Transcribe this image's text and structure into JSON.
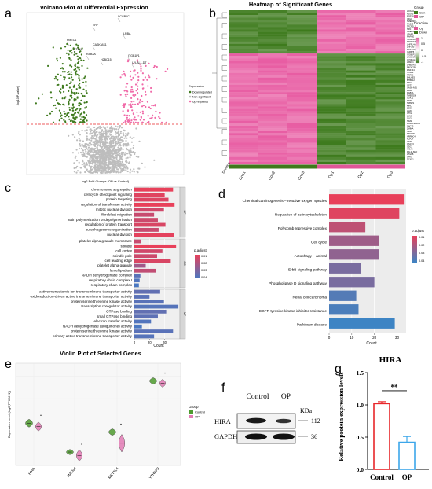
{
  "panel_letters": [
    "a",
    "b",
    "c",
    "d",
    "e",
    "f",
    "g"
  ],
  "chart_data": [
    {
      "panel": "a",
      "type": "scatter",
      "title": "volcano Plot of Differential Expression",
      "xlabel": "log2 Fold Change (OP vs Control)",
      "ylabel": "-log10(P-value)",
      "legend": {
        "title": "Expression",
        "entries": [
          "Down-regulated",
          "Non-significant",
          "Up-regulated"
        ],
        "position": "right"
      },
      "colors": {
        "down": "#3f7a1e",
        "ns": "#bdbdbd",
        "up": "#f06aa8",
        "threshold": "#e8262a"
      },
      "gene_labels": [
        "SCGB1C1",
        "ERF",
        "LRBA",
        "PMEC1",
        "CASK-AS1",
        "STK16",
        "RAB3A",
        "H2BC15",
        "ITGB1P1",
        "LYLAL1-DT"
      ]
    },
    {
      "panel": "b",
      "type": "heatmap",
      "title": "Heatmap of Significant Genes",
      "columns": [
        "Con1",
        "Con2",
        "Con3",
        "Op1",
        "Op2",
        "Op3"
      ],
      "column_bar_label": "Direction",
      "legend": {
        "group_title": "Group",
        "group_entries": [
          "Con",
          "OP"
        ],
        "direction_title": "Direction",
        "direction_entries": [
          "Up",
          "Down"
        ],
        "scale_ticks": [
          "1",
          "0.5",
          "0",
          "-0.5",
          "-1"
        ]
      },
      "colors": {
        "high": "#e85da3",
        "low": "#3d7a1c",
        "mid": "#ffffff",
        "op": "#e05698",
        "con": "#3e7a1b"
      },
      "up_blocks": 18,
      "down_blocks": 46,
      "row_labels": [
        "HOXA9",
        "FZGA5",
        "RSPY8",
        "CDH1",
        "TMEM40",
        "RAB13",
        "TFCP2L1",
        "SFN",
        "GREB1",
        "LPAR3",
        "RAPGE",
        "SCGB1C1",
        "SERPINA2",
        "LHFPL4-AS1",
        "ZNF385",
        "RAP-MA2",
        "IGFBP5",
        "ITGB1P1",
        "LINC01705",
        "CYDEAL1",
        "LAMC1",
        "LHBL-AS1",
        "PIK3C2B",
        "RNF144",
        "SYBP4",
        "PRR36",
        "BHLHE5",
        "BTBD12",
        "NFIC",
        "CST2",
        "CASK-AS1",
        "LRBA",
        "RAB3A",
        "TMEM208",
        "SOX11",
        "DDTL",
        "TRIM71",
        "KIRL",
        "ZCS3",
        "HHAT",
        "CTNA",
        "JUN8",
        "GLI3",
        "SDAB",
        "MAHB-SHFC3",
        "SNC13",
        "ZMIMA",
        "NRK2",
        "STK16P",
        "ARRDC4",
        "FLVCR",
        "CDK5",
        "GSCT3",
        "CDC3",
        "ITGA5",
        "PALM-SMF",
        "ATG9B",
        "SPN1",
        "DCNT1"
      ]
    },
    {
      "panel": "c",
      "type": "bar",
      "xlabel": "Count",
      "xlim": [
        0,
        60
      ],
      "xticks": [
        0,
        20,
        40
      ],
      "legend": {
        "title": "p.adjust",
        "ticks": [
          "0.01",
          "0.02",
          "0.03",
          "0.04"
        ]
      },
      "colors": {
        "low": "#e8405a",
        "high": "#4a78c2"
      },
      "groups": [
        {
          "name": "BP",
          "categories": [
            "chromosome segregation",
            "cell cycle checkpoint signaling",
            "protein targeting",
            "regulation of transferase activity",
            "mitotic nuclear division",
            "fibroblast migration",
            "actin polymerization or depolymerization",
            "regulation of protein transport",
            "autophagosome organization",
            "nuclear division"
          ],
          "values": [
            51,
            40,
            45,
            53,
            39,
            26,
            31,
            41,
            32,
            52
          ],
          "p_adjust": [
            0.004,
            0.006,
            0.007,
            0.004,
            0.01,
            0.012,
            0.011,
            0.008,
            0.012,
            0.005
          ]
        },
        {
          "name": "CC",
          "categories": [
            "platelet alpha granule membrane",
            "spindle",
            "cell cortex",
            "spindle pole",
            "cell leading edge",
            "platelet alpha granule",
            "lamellipodium",
            "NADH dehydrogenase complex",
            "respiratory chain complex I",
            "respiratory chain complex"
          ],
          "values": [
            9,
            55,
            37,
            30,
            48,
            15,
            28,
            8,
            7,
            6
          ],
          "p_adjust": [
            0.012,
            0.004,
            0.01,
            0.011,
            0.008,
            0.022,
            0.014,
            0.04,
            0.042,
            0.044
          ]
        },
        {
          "name": "MF",
          "categories": [
            "active monoatomic ion transmembrane transporter activity",
            "oxidoreduction-driven active transmembrane transporter activity",
            "protein serine/threonine kinase activity",
            "transcription coregulator activity",
            "GTPase binding",
            "small GTPase binding",
            "electron transfer activity",
            "NADH dehydrogenase (ubiquinone) activity",
            "protein serine/threonine kinase activity",
            "primary active transmembrane transporter activity"
          ],
          "values": [
            34,
            20,
            39,
            58,
            42,
            31,
            22,
            10,
            51,
            26
          ],
          "p_adjust": [
            0.038,
            0.04,
            0.04,
            0.041,
            0.038,
            0.039,
            0.042,
            0.044,
            0.04,
            0.041
          ]
        }
      ]
    },
    {
      "panel": "d",
      "type": "bar",
      "xlabel": "Count",
      "xlim": [
        0,
        34
      ],
      "xticks": [
        0,
        10,
        20,
        30
      ],
      "legend": {
        "title": "p.adjust",
        "ticks": [
          "0.01",
          "0.02",
          "0.03",
          "0.04"
        ]
      },
      "colors": {
        "low": "#e8405a",
        "high": "#3d84c4"
      },
      "categories": [
        "Chemical carcinogenesis – reactive oxygen species",
        "Regulation of actin cytoskeleton",
        "Polycomb repressive complex",
        "Cell cycle",
        "Autophagy – animal",
        "ErbB signaling pathway",
        "Phospholipase D signaling pathway",
        "Renal cell carcinoma",
        "EGFR tyrosine kinase inhibitor resistance",
        "Parkinson disease"
      ],
      "values": [
        33,
        31,
        16,
        22,
        22,
        14,
        20,
        12,
        13,
        29
      ],
      "p_adjust": [
        0.006,
        0.008,
        0.015,
        0.022,
        0.025,
        0.03,
        0.03,
        0.038,
        0.04,
        0.043
      ]
    },
    {
      "panel": "e",
      "type": "scatter",
      "title": "Violin Plot of Selected Genes",
      "ylabel": "Expression Level (log2(FPKM+1))",
      "categories": [
        "HIRA",
        "MATN4",
        "METTL4",
        "YTHDF3"
      ],
      "legend": {
        "title": "Group",
        "entries": [
          "Control",
          "OP"
        ],
        "position": "right"
      },
      "colors": {
        "control": "#4e9a2e",
        "op": "#e27ab4"
      },
      "series": [
        {
          "name": "Control",
          "values": [
            1.9,
            0.6,
            1.5,
            3.8
          ]
        },
        {
          "name": "OP",
          "values": [
            1.75,
            0.45,
            1.0,
            3.7
          ]
        }
      ]
    },
    {
      "panel": "f",
      "type": "table",
      "lanes": [
        "Control",
        "OP"
      ],
      "rows": [
        "HIRA",
        "GAPDH"
      ],
      "kda_label": "KDa",
      "kda_values": [
        "112",
        "36"
      ]
    },
    {
      "panel": "g",
      "type": "bar",
      "title": "HIRA",
      "ylabel": "Relative protein expression levels",
      "ylim": [
        0,
        1.5
      ],
      "yticks": [
        "0.0",
        "0.5",
        "1.0",
        "1.5"
      ],
      "categories": [
        "Control",
        "OP"
      ],
      "values": [
        1.02,
        0.42
      ],
      "errors": [
        0.03,
        0.09
      ],
      "significance": "**",
      "colors": {
        "control": "#e8262a",
        "op": "#3ca6ea"
      }
    }
  ]
}
